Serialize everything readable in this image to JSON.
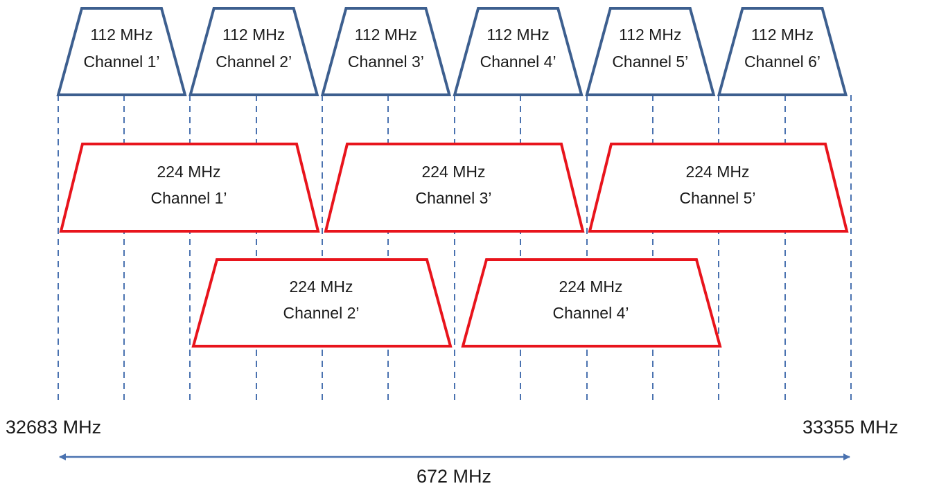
{
  "colors": {
    "channel_112_stroke": "#3d5f8f",
    "channel_224_stroke": "#e8141c",
    "guide_line": "#4a72b0",
    "span_arrow": "#4a72b0",
    "text": "#1a1a1a"
  },
  "channels_112": [
    {
      "bandwidth": "112 MHz",
      "name": "Channel 1’"
    },
    {
      "bandwidth": "112 MHz",
      "name": "Channel 2’"
    },
    {
      "bandwidth": "112 MHz",
      "name": "Channel 3’"
    },
    {
      "bandwidth": "112 MHz",
      "name": "Channel 4’"
    },
    {
      "bandwidth": "112 MHz",
      "name": "Channel 5’"
    },
    {
      "bandwidth": "112 MHz",
      "name": "Channel 6’"
    }
  ],
  "channels_224_row1": [
    {
      "bandwidth": "224 MHz",
      "name": "Channel 1’"
    },
    {
      "bandwidth": "224 MHz",
      "name": "Channel 3’"
    },
    {
      "bandwidth": "224 MHz",
      "name": "Channel 5’"
    }
  ],
  "channels_224_row2": [
    {
      "bandwidth": "224 MHz",
      "name": "Channel 2’"
    },
    {
      "bandwidth": "224 MHz",
      "name": "Channel 4’"
    }
  ],
  "band": {
    "start_label": "32683 MHz",
    "end_label": "33355 MHz",
    "span_label": "672 MHz"
  }
}
